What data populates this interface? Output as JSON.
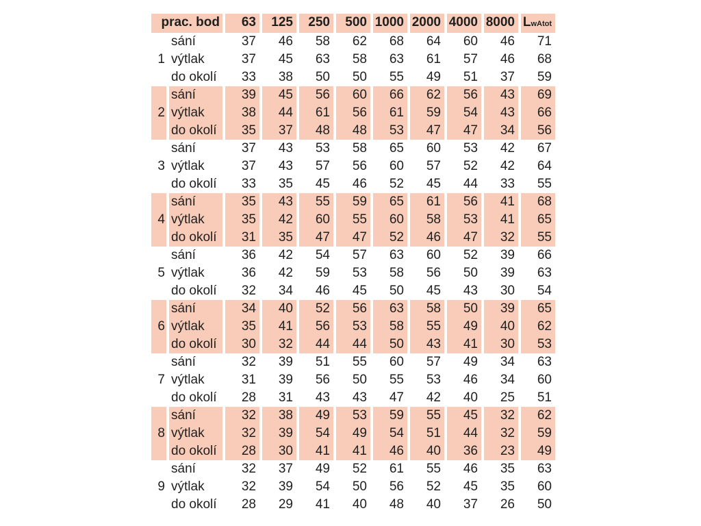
{
  "colors": {
    "highlight": "#f8ccb8",
    "text": "#1f1f1f",
    "background": "#ffffff"
  },
  "table": {
    "header": {
      "col1": "prac. bod",
      "frequencies": [
        "63",
        "125",
        "250",
        "500",
        "1000",
        "2000",
        "4000",
        "8000"
      ],
      "total_label": {
        "main": "L",
        "sub": "wAtot"
      }
    },
    "row_labels": [
      "sání",
      "výtlak",
      "do okolí"
    ],
    "groups": [
      {
        "id": "1",
        "highlight": false,
        "rows": [
          [
            37,
            46,
            58,
            62,
            68,
            64,
            60,
            46,
            71
          ],
          [
            37,
            45,
            63,
            58,
            63,
            61,
            57,
            46,
            68
          ],
          [
            33,
            38,
            50,
            50,
            55,
            49,
            51,
            37,
            59
          ]
        ]
      },
      {
        "id": "2",
        "highlight": true,
        "rows": [
          [
            39,
            45,
            56,
            60,
            66,
            62,
            56,
            43,
            69
          ],
          [
            38,
            44,
            61,
            56,
            61,
            59,
            54,
            43,
            66
          ],
          [
            35,
            37,
            48,
            48,
            53,
            47,
            47,
            34,
            56
          ]
        ]
      },
      {
        "id": "3",
        "highlight": false,
        "rows": [
          [
            37,
            43,
            53,
            58,
            65,
            60,
            53,
            42,
            67
          ],
          [
            37,
            43,
            57,
            56,
            60,
            57,
            52,
            42,
            64
          ],
          [
            33,
            35,
            45,
            46,
            52,
            45,
            44,
            33,
            55
          ]
        ]
      },
      {
        "id": "4",
        "highlight": true,
        "rows": [
          [
            35,
            43,
            55,
            59,
            65,
            61,
            56,
            41,
            68
          ],
          [
            35,
            42,
            60,
            55,
            60,
            58,
            53,
            41,
            65
          ],
          [
            31,
            35,
            47,
            47,
            52,
            46,
            47,
            32,
            55
          ]
        ]
      },
      {
        "id": "5",
        "highlight": false,
        "rows": [
          [
            36,
            42,
            54,
            57,
            63,
            60,
            52,
            39,
            66
          ],
          [
            36,
            42,
            59,
            53,
            58,
            56,
            50,
            39,
            63
          ],
          [
            32,
            34,
            46,
            45,
            50,
            45,
            43,
            30,
            54
          ]
        ]
      },
      {
        "id": "6",
        "highlight": true,
        "rows": [
          [
            34,
            40,
            52,
            56,
            63,
            58,
            50,
            39,
            65
          ],
          [
            35,
            41,
            56,
            53,
            58,
            55,
            49,
            40,
            62
          ],
          [
            30,
            32,
            44,
            44,
            50,
            43,
            41,
            30,
            53
          ]
        ]
      },
      {
        "id": "7",
        "highlight": false,
        "rows": [
          [
            32,
            39,
            51,
            55,
            60,
            57,
            49,
            34,
            63
          ],
          [
            31,
            39,
            56,
            50,
            55,
            53,
            46,
            34,
            60
          ],
          [
            28,
            31,
            43,
            43,
            47,
            42,
            40,
            25,
            51
          ]
        ]
      },
      {
        "id": "8",
        "highlight": true,
        "rows": [
          [
            32,
            38,
            49,
            53,
            59,
            55,
            45,
            32,
            62
          ],
          [
            32,
            39,
            54,
            49,
            54,
            51,
            44,
            32,
            59
          ],
          [
            28,
            30,
            41,
            41,
            46,
            40,
            36,
            23,
            49
          ]
        ]
      },
      {
        "id": "9",
        "highlight": false,
        "rows": [
          [
            32,
            37,
            49,
            52,
            61,
            55,
            46,
            35,
            63
          ],
          [
            32,
            39,
            54,
            50,
            56,
            52,
            45,
            35,
            60
          ],
          [
            28,
            29,
            41,
            40,
            48,
            40,
            37,
            26,
            50
          ]
        ]
      }
    ]
  }
}
